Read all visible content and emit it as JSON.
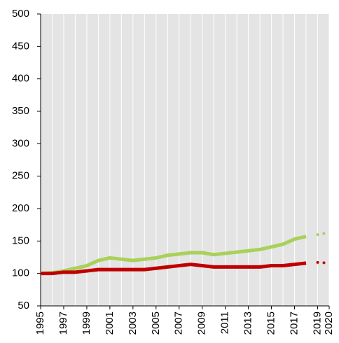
{
  "chart_data": {
    "type": "line",
    "x": [
      1995,
      1996,
      1997,
      1998,
      1999,
      2000,
      2001,
      2002,
      2003,
      2004,
      2005,
      2006,
      2007,
      2008,
      2009,
      2010,
      2011,
      2012,
      2013,
      2014,
      2015,
      2016,
      2017,
      2018,
      2019,
      2020
    ],
    "series": [
      {
        "color": "#a9d15a",
        "style": "solid",
        "values": [
          100,
          101,
          104,
          108,
          112,
          120,
          124,
          122,
          120,
          122,
          124,
          128,
          130,
          132,
          132,
          129,
          131,
          133,
          135,
          137,
          141,
          145,
          153,
          157,
          null,
          null
        ]
      },
      {
        "color": "#c00000",
        "style": "solid",
        "values": [
          100,
          100,
          102,
          102,
          104,
          106,
          106,
          106,
          106,
          106,
          108,
          110,
          112,
          114,
          112,
          110,
          110,
          110,
          110,
          110,
          112,
          112,
          114,
          116,
          null,
          null
        ]
      },
      {
        "color": "#a9d15a",
        "style": "dotted",
        "values": [
          null,
          null,
          null,
          null,
          null,
          null,
          null,
          null,
          null,
          null,
          null,
          null,
          null,
          null,
          null,
          null,
          null,
          null,
          null,
          null,
          null,
          null,
          null,
          null,
          160,
          163
        ]
      },
      {
        "color": "#c00000",
        "style": "dotted",
        "values": [
          null,
          null,
          null,
          null,
          null,
          null,
          null,
          null,
          null,
          null,
          null,
          null,
          null,
          null,
          null,
          null,
          null,
          null,
          null,
          null,
          null,
          null,
          null,
          null,
          117,
          116
        ]
      }
    ],
    "xlim": [
      1995,
      2020
    ],
    "xticks": [
      1995,
      1997,
      1999,
      2001,
      2003,
      2005,
      2007,
      2009,
      2011,
      2013,
      2015,
      2017,
      2019,
      2020
    ],
    "ylim": [
      50,
      500
    ],
    "yticks": [
      50,
      100,
      150,
      200,
      250,
      300,
      350,
      400,
      450,
      500
    ],
    "grid": true
  }
}
